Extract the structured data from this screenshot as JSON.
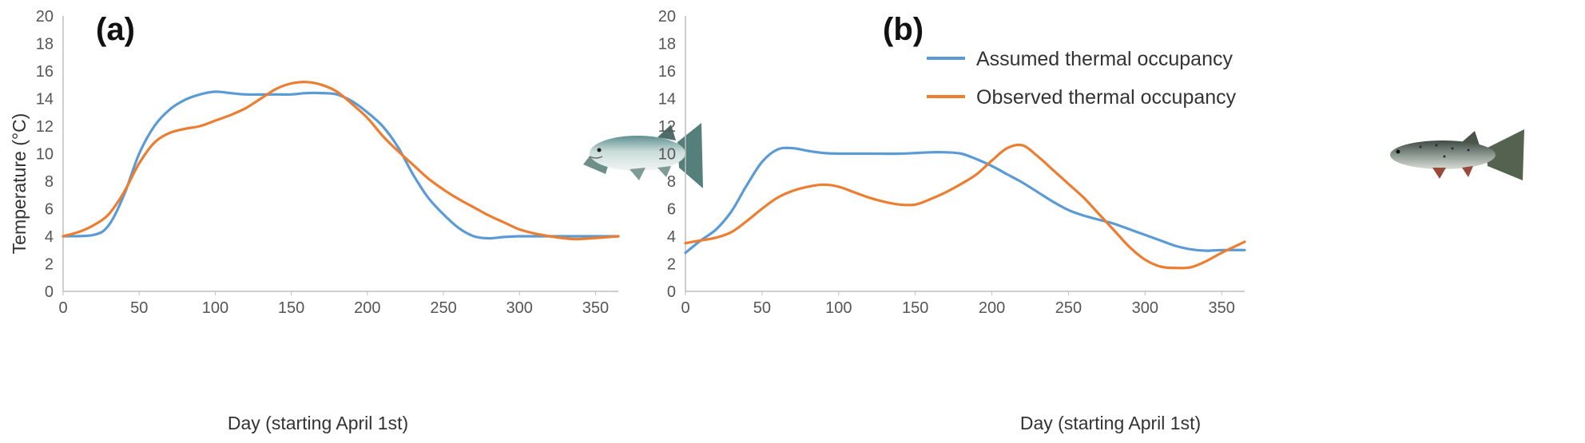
{
  "chart_data": [
    {
      "type": "line",
      "panel_label": "(a)",
      "xlabel": "Day (starting April 1st)",
      "ylabel": "Temperature (°C)",
      "xlim": [
        0,
        365
      ],
      "ylim": [
        0,
        20
      ],
      "x_ticks": [
        0,
        50,
        100,
        150,
        200,
        250,
        300,
        350
      ],
      "y_ticks": [
        0,
        2,
        4,
        6,
        8,
        10,
        12,
        14,
        16,
        18,
        20
      ],
      "grid": false,
      "legend": "none",
      "icon": "salmon-icon",
      "series": [
        {
          "color": "#5b9bd5",
          "x": [
            0,
            20,
            30,
            40,
            50,
            60,
            70,
            80,
            90,
            100,
            110,
            120,
            140,
            150,
            160,
            170,
            180,
            190,
            200,
            210,
            220,
            230,
            240,
            250,
            260,
            270,
            280,
            290,
            300,
            320,
            340,
            365
          ],
          "y": [
            4.0,
            4.1,
            4.8,
            7.0,
            10.0,
            12.0,
            13.2,
            13.9,
            14.3,
            14.5,
            14.4,
            14.3,
            14.3,
            14.3,
            14.4,
            14.4,
            14.3,
            13.8,
            13.0,
            12.0,
            10.5,
            8.5,
            6.8,
            5.6,
            4.6,
            4.0,
            3.85,
            3.95,
            4.0,
            4.0,
            4.0,
            4.0
          ]
        },
        {
          "color": "#ed7d31",
          "x": [
            0,
            10,
            20,
            30,
            40,
            50,
            60,
            70,
            80,
            90,
            100,
            110,
            120,
            130,
            140,
            150,
            160,
            170,
            180,
            190,
            200,
            210,
            220,
            230,
            240,
            250,
            260,
            270,
            280,
            290,
            300,
            310,
            320,
            330,
            340,
            365
          ],
          "y": [
            4.0,
            4.3,
            4.8,
            5.6,
            7.2,
            9.3,
            10.8,
            11.5,
            11.8,
            12.0,
            12.4,
            12.8,
            13.3,
            14.0,
            14.7,
            15.1,
            15.2,
            15.0,
            14.5,
            13.6,
            12.6,
            11.3,
            10.2,
            9.2,
            8.2,
            7.4,
            6.7,
            6.1,
            5.5,
            5.0,
            4.5,
            4.2,
            4.0,
            3.85,
            3.8,
            4.0
          ]
        }
      ]
    },
    {
      "type": "line",
      "panel_label": "(b)",
      "xlabel": "Day (starting April 1st)",
      "ylabel": "",
      "xlim": [
        0,
        365
      ],
      "ylim": [
        0,
        20
      ],
      "x_ticks": [
        0,
        50,
        100,
        150,
        200,
        250,
        300,
        350
      ],
      "y_ticks": [
        0,
        2,
        4,
        6,
        8,
        10,
        12,
        14,
        16,
        18,
        20
      ],
      "grid": false,
      "legend": "top-left",
      "icon": "trout-icon",
      "series": [
        {
          "name": "Assumed thermal occupancy",
          "color": "#5b9bd5",
          "x": [
            0,
            10,
            20,
            30,
            40,
            50,
            60,
            70,
            80,
            90,
            100,
            120,
            140,
            160,
            170,
            180,
            190,
            200,
            210,
            220,
            230,
            240,
            250,
            260,
            270,
            280,
            290,
            300,
            310,
            320,
            330,
            340,
            350,
            365
          ],
          "y": [
            2.8,
            3.7,
            4.5,
            5.8,
            7.7,
            9.4,
            10.3,
            10.4,
            10.2,
            10.05,
            10.0,
            10.0,
            10.0,
            10.1,
            10.1,
            10.0,
            9.6,
            9.1,
            8.5,
            7.9,
            7.2,
            6.5,
            5.9,
            5.5,
            5.2,
            4.9,
            4.5,
            4.1,
            3.7,
            3.3,
            3.05,
            2.95,
            3.0,
            3.0
          ]
        },
        {
          "name": "Observed thermal occupancy",
          "color": "#ed7d31",
          "x": [
            0,
            10,
            20,
            30,
            40,
            50,
            60,
            70,
            80,
            90,
            100,
            110,
            120,
            130,
            140,
            150,
            160,
            170,
            180,
            190,
            200,
            210,
            220,
            230,
            240,
            250,
            260,
            270,
            280,
            290,
            300,
            310,
            320,
            330,
            340,
            350,
            365
          ],
          "y": [
            3.5,
            3.7,
            3.9,
            4.3,
            5.1,
            6.0,
            6.8,
            7.3,
            7.6,
            7.75,
            7.6,
            7.2,
            6.8,
            6.5,
            6.3,
            6.3,
            6.7,
            7.2,
            7.8,
            8.5,
            9.5,
            10.4,
            10.6,
            9.8,
            8.8,
            7.8,
            6.8,
            5.6,
            4.4,
            3.2,
            2.3,
            1.8,
            1.7,
            1.75,
            2.2,
            2.8,
            3.6
          ]
        }
      ]
    }
  ]
}
